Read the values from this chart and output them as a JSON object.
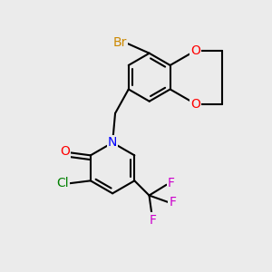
{
  "bg_color": "#ebebeb",
  "atom_colors": {
    "C": "#000000",
    "N": "#0000ff",
    "O": "#ff0000",
    "Cl": "#008000",
    "Br": "#cc8800",
    "F": "#cc00cc"
  },
  "bond_color": "#000000",
  "bond_width": 1.5,
  "dbo": 0.08
}
